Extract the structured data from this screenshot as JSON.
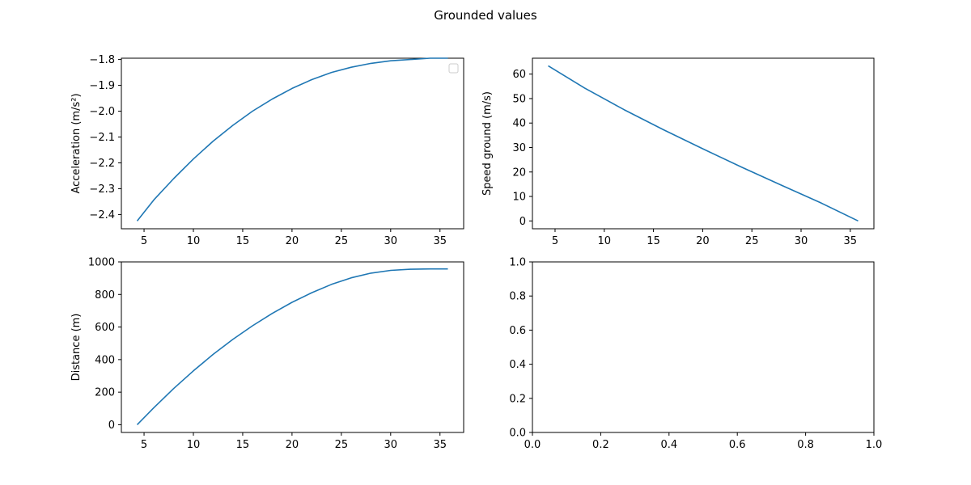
{
  "figure": {
    "title": "Grounded values"
  },
  "chart_data": [
    {
      "type": "line",
      "xlabel": "",
      "ylabel": "Acceleration (m/s²)",
      "xlim": [
        2.7,
        37.4
      ],
      "ylim": [
        -2.455,
        -1.795
      ],
      "xticks": [
        5,
        10,
        15,
        20,
        25,
        30,
        35
      ],
      "xtick_labels": [
        "5",
        "10",
        "15",
        "20",
        "25",
        "30",
        "35"
      ],
      "yticks": [
        -2.4,
        -2.3,
        -2.2,
        -2.1,
        -2.0,
        -1.9,
        -1.8
      ],
      "ytick_labels": [
        "−2.4",
        "−2.3",
        "−2.2",
        "−2.1",
        "−2.0",
        "−1.9",
        "−1.8"
      ],
      "legend": "top-right (empty)",
      "grid": false,
      "series": [
        {
          "color": "#1f77b4",
          "x": [
            4.3,
            6,
            8,
            10,
            12,
            14,
            16,
            18,
            20,
            22,
            24,
            26,
            28,
            30,
            32,
            34,
            35.8
          ],
          "y": [
            -2.425,
            -2.343,
            -2.261,
            -2.185,
            -2.116,
            -2.055,
            -2.0,
            -1.953,
            -1.912,
            -1.878,
            -1.85,
            -1.83,
            -1.815,
            -1.805,
            -1.8,
            -1.795,
            -1.795
          ]
        }
      ]
    },
    {
      "type": "line",
      "xlabel": "",
      "ylabel": "Speed ground (m/s)",
      "xlim": [
        2.7,
        37.4
      ],
      "ylim": [
        -3.2,
        66.5
      ],
      "xticks": [
        5,
        10,
        15,
        20,
        25,
        30,
        35
      ],
      "xtick_labels": [
        "5",
        "10",
        "15",
        "20",
        "25",
        "30",
        "35"
      ],
      "yticks": [
        0,
        10,
        20,
        30,
        40,
        50,
        60
      ],
      "ytick_labels": [
        "0",
        "10",
        "20",
        "30",
        "40",
        "50",
        "60"
      ],
      "grid": false,
      "series": [
        {
          "color": "#1f77b4",
          "x": [
            4.3,
            8,
            12,
            16,
            20,
            24,
            28,
            32,
            35.8
          ],
          "y": [
            63.4,
            54.3,
            45.5,
            37.3,
            29.5,
            21.9,
            14.6,
            7.4,
            0.0
          ]
        }
      ]
    },
    {
      "type": "line",
      "xlabel": "",
      "ylabel": "Distance (m)",
      "xlim": [
        2.7,
        37.4
      ],
      "ylim": [
        -47.5,
        1000
      ],
      "xticks": [
        5,
        10,
        15,
        20,
        25,
        30,
        35
      ],
      "xtick_labels": [
        "5",
        "10",
        "15",
        "20",
        "25",
        "30",
        "35"
      ],
      "yticks": [
        0,
        200,
        400,
        600,
        800,
        1000
      ],
      "ytick_labels": [
        "0",
        "200",
        "400",
        "600",
        "800",
        "1000"
      ],
      "grid": false,
      "series": [
        {
          "color": "#1f77b4",
          "x": [
            4.3,
            6,
            8,
            10,
            12,
            14,
            16,
            18,
            20,
            22,
            24,
            26,
            28,
            30,
            32,
            34,
            35.8
          ],
          "y": [
            0,
            105,
            222,
            331,
            432,
            524,
            608,
            684,
            752,
            811,
            862,
            902,
            931,
            948,
            955,
            957,
            957
          ]
        }
      ]
    },
    {
      "type": "line",
      "xlabel": "",
      "ylabel": "",
      "xlim": [
        0,
        1
      ],
      "ylim": [
        0,
        1
      ],
      "xticks": [
        0,
        0.2,
        0.4,
        0.6,
        0.8,
        1.0
      ],
      "xtick_labels": [
        "0.0",
        "0.2",
        "0.4",
        "0.6",
        "0.8",
        "1.0"
      ],
      "yticks": [
        0,
        0.2,
        0.4,
        0.6,
        0.8,
        1.0
      ],
      "ytick_labels": [
        "0.0",
        "0.2",
        "0.4",
        "0.6",
        "0.8",
        "1.0"
      ],
      "grid": false,
      "series": []
    }
  ]
}
